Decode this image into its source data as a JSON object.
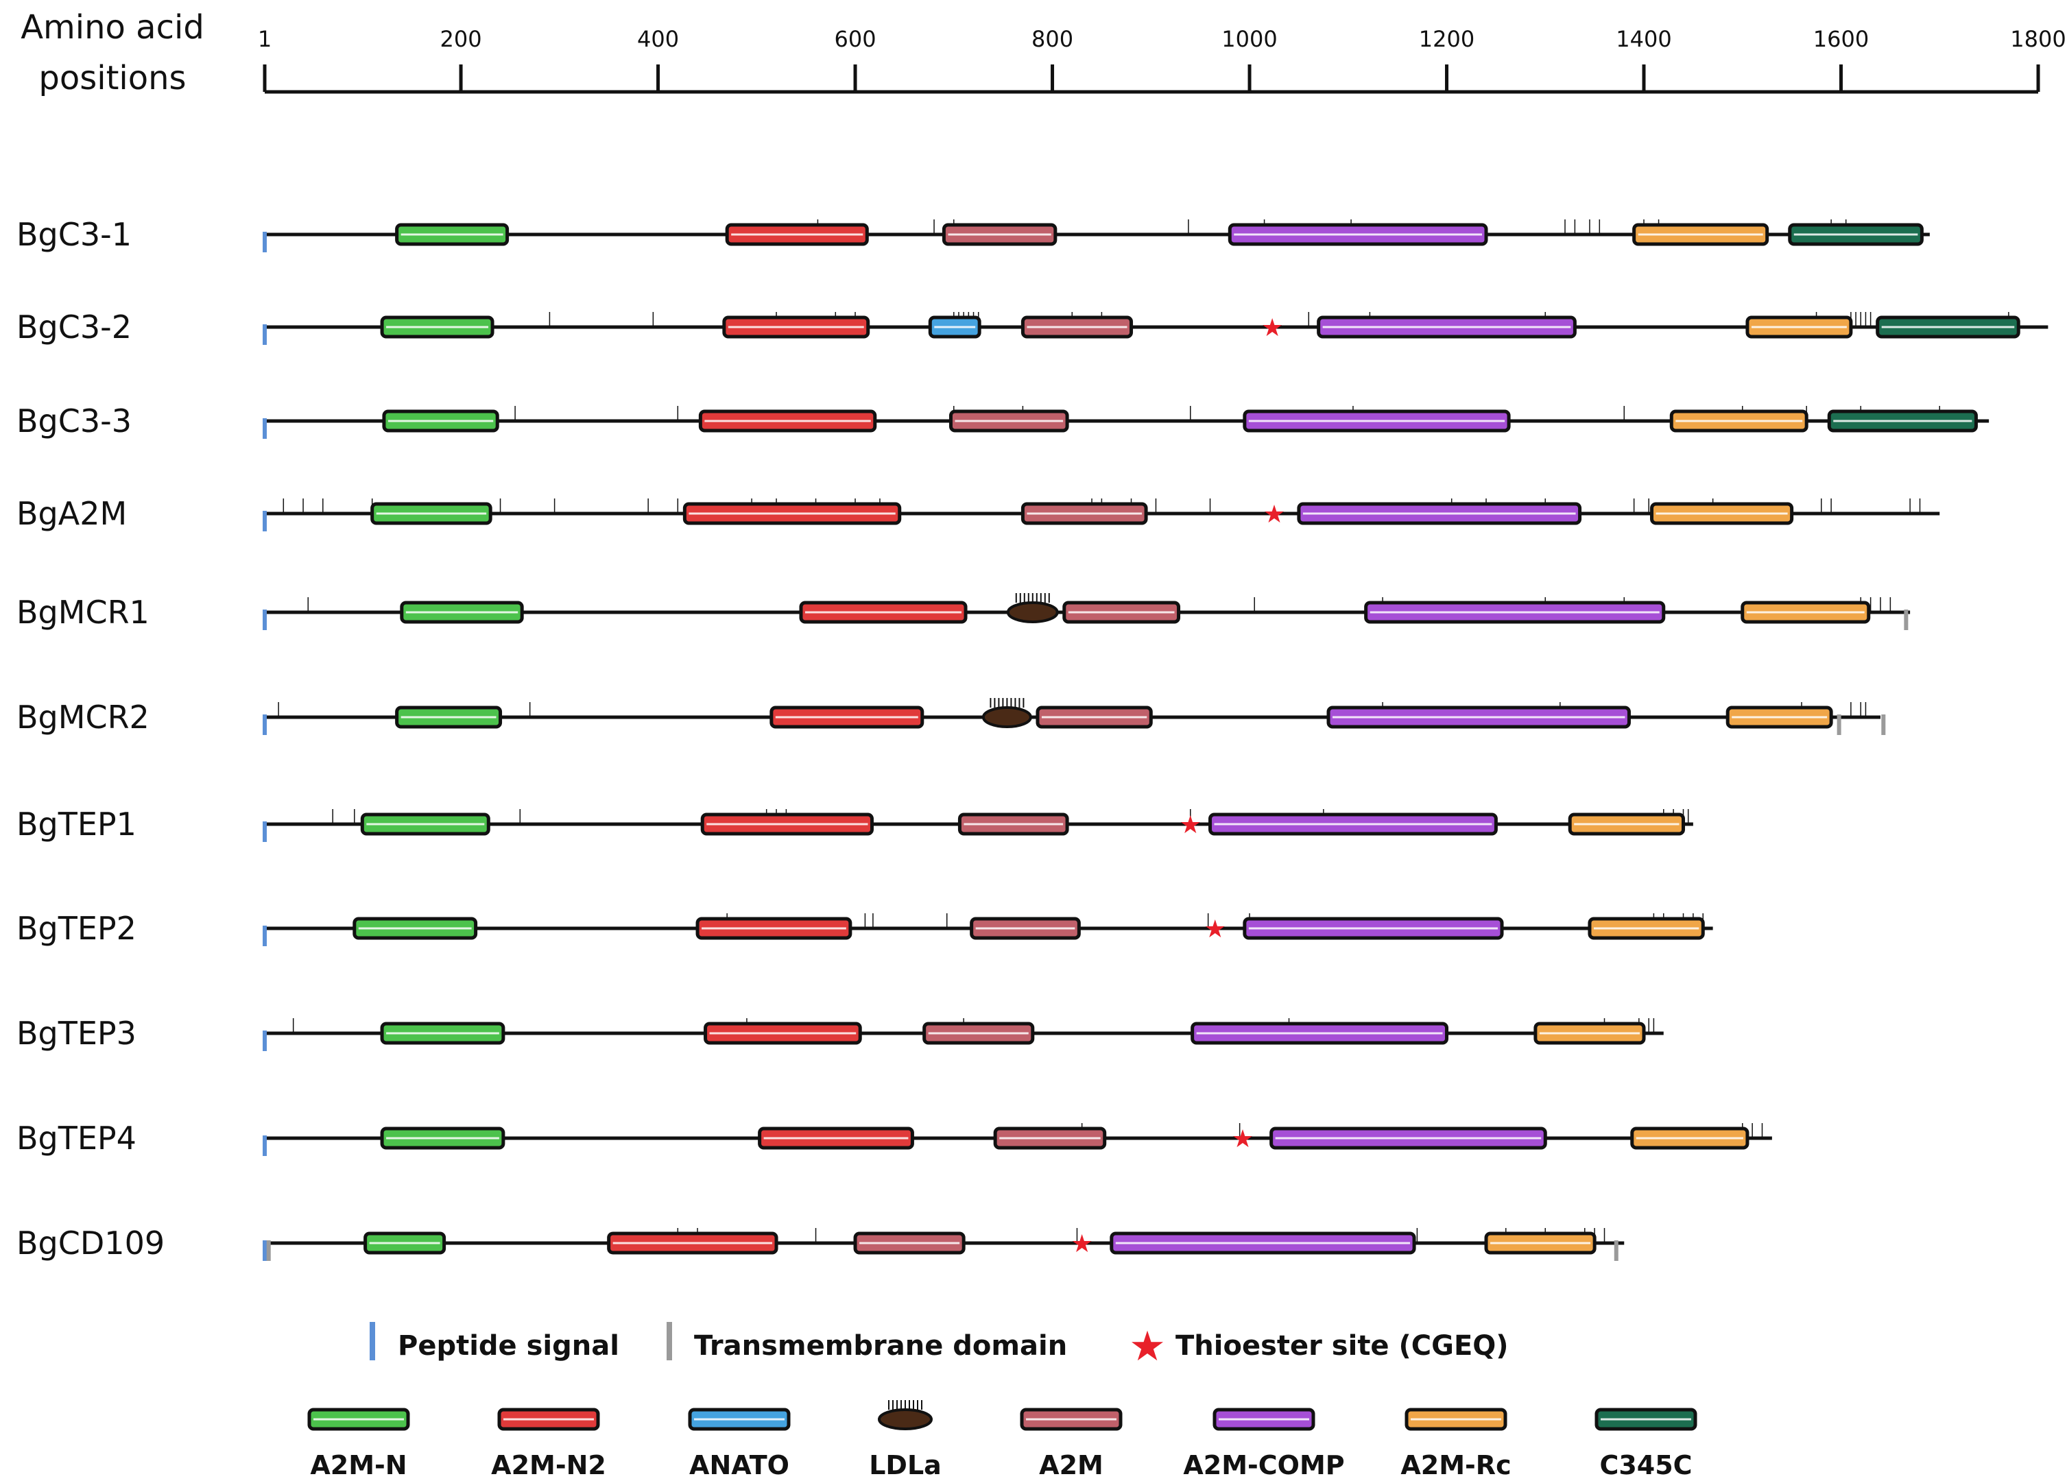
{
  "axis": {
    "title_line1": "Amino acid",
    "title_line2": "positions",
    "ticks": [
      {
        "value": 1,
        "label": "1"
      },
      {
        "value": 200,
        "label": "200"
      },
      {
        "value": 400,
        "label": "400"
      },
      {
        "value": 600,
        "label": "600"
      },
      {
        "value": 800,
        "label": "800"
      },
      {
        "value": 1000,
        "label": "1000"
      },
      {
        "value": 1200,
        "label": "1200"
      },
      {
        "value": 1400,
        "label": "1400"
      },
      {
        "value": 1600,
        "label": "1600"
      },
      {
        "value": 1800,
        "label": "1800"
      }
    ]
  },
  "domain_types": {
    "A2M-N": {
      "label": "A2M-N",
      "color": "#4cc24c",
      "shape": "bar"
    },
    "A2M-N2": {
      "label": "A2M-N2",
      "color": "#e03a3a",
      "shape": "bar"
    },
    "ANATO": {
      "label": "ANATO",
      "color": "#45a3e0",
      "shape": "bar"
    },
    "LDLa": {
      "label": "LDLa",
      "color": "#4a2a16",
      "shape": "ellipse"
    },
    "A2M": {
      "label": "A2M",
      "color": "#c0606a",
      "shape": "bar"
    },
    "A2M-COMP": {
      "label": "A2M-COMP",
      "color": "#a64fd6",
      "shape": "bar"
    },
    "A2M-Rc": {
      "label": "A2M-Rc",
      "color": "#f0a648",
      "shape": "bar"
    },
    "C345C": {
      "label": "C345C",
      "color": "#1c6e50",
      "shape": "bar"
    }
  },
  "colors": {
    "peptide_signal": "#5b8fd6",
    "transmembrane": "#9a9a9a",
    "thioester": "#e8202a",
    "backbone": "#111111"
  },
  "proteins": [
    {
      "name": "BgC3-1",
      "length": 1690,
      "signal": true,
      "tm": [],
      "thioester": null,
      "domains": [
        [
          "A2M-N",
          135,
          247
        ],
        [
          "A2M-N2",
          470,
          612
        ],
        [
          "A2M",
          690,
          803
        ],
        [
          "A2M-COMP",
          980,
          1240
        ],
        [
          "A2M-Rc",
          1390,
          1525
        ],
        [
          "C345C",
          1548,
          1682
        ]
      ],
      "marks": [
        562,
        680,
        700,
        938,
        1015,
        1103,
        1320,
        1330,
        1345,
        1355,
        1400,
        1415,
        1590,
        1605
      ]
    },
    {
      "name": "BgC3-2",
      "length": 1810,
      "signal": true,
      "tm": [],
      "thioester": 1023,
      "domains": [
        [
          "A2M-N",
          120,
          232
        ],
        [
          "A2M-N2",
          467,
          613
        ],
        [
          "ANATO",
          676,
          726
        ],
        [
          "A2M",
          770,
          880
        ],
        [
          "A2M-COMP",
          1070,
          1330
        ],
        [
          "A2M-Rc",
          1505,
          1610
        ],
        [
          "C345C",
          1637,
          1780
        ]
      ],
      "marks": [
        290,
        395,
        520,
        580,
        600,
        700,
        705,
        710,
        715,
        720,
        725,
        820,
        850,
        1060,
        1122,
        1300,
        1575,
        1610,
        1615,
        1620,
        1625,
        1630,
        1770
      ]
    },
    {
      "name": "BgC3-3",
      "length": 1750,
      "signal": true,
      "tm": [],
      "thioester": null,
      "domains": [
        [
          "A2M-N",
          122,
          237
        ],
        [
          "A2M-N2",
          443,
          620
        ],
        [
          "A2M",
          697,
          815
        ],
        [
          "A2M-COMP",
          995,
          1263
        ],
        [
          "A2M-Rc",
          1428,
          1565
        ],
        [
          "C345C",
          1588,
          1737
        ]
      ],
      "marks": [
        255,
        420,
        700,
        770,
        940,
        1105,
        1380,
        1500,
        1565,
        1620,
        1700
      ]
    },
    {
      "name": "BgA2M",
      "length": 1700,
      "signal": true,
      "tm": [],
      "thioester": 1025,
      "domains": [
        [
          "A2M-N",
          110,
          230
        ],
        [
          "A2M-N2",
          427,
          645
        ],
        [
          "A2M",
          770,
          895
        ],
        [
          "A2M-COMP",
          1050,
          1335
        ],
        [
          "A2M-Rc",
          1408,
          1550
        ],
        [
          "",
          0,
          0
        ]
      ],
      "marks": [
        20,
        40,
        60,
        110,
        240,
        295,
        390,
        420,
        495,
        520,
        560,
        600,
        625,
        840,
        850,
        880,
        905,
        960,
        1205,
        1240,
        1300,
        1390,
        1405,
        1470,
        1580,
        1590,
        1670,
        1680
      ]
    },
    {
      "name": "BgMCR1",
      "length": 1670,
      "signal": true,
      "tm": [
        1666
      ],
      "thioester": null,
      "domains": [
        [
          "A2M-N",
          140,
          262
        ],
        [
          "A2M-N2",
          545,
          712
        ],
        [
          "LDLa",
          755,
          805
        ],
        [
          "A2M",
          812,
          928
        ],
        [
          "A2M-COMP",
          1118,
          1420
        ],
        [
          "A2M-Rc",
          1500,
          1628
        ],
        [
          "",
          0,
          0
        ]
      ],
      "marks": [
        45,
        1005,
        1135,
        1300,
        1380,
        1620,
        1630,
        1640,
        1650
      ]
    },
    {
      "name": "BgMCR2",
      "length": 1640,
      "signal": true,
      "tm": [
        1598,
        1643
      ],
      "thioester": null,
      "domains": [
        [
          "A2M-N",
          135,
          240
        ],
        [
          "A2M-N2",
          515,
          668
        ],
        [
          "LDLa",
          730,
          778
        ],
        [
          "A2M",
          785,
          900
        ],
        [
          "A2M-COMP",
          1080,
          1385
        ],
        [
          "A2M-Rc",
          1485,
          1590
        ],
        [
          "",
          0,
          0
        ]
      ],
      "marks": [
        15,
        270,
        1135,
        1315,
        1560,
        1610,
        1620,
        1625
      ]
    },
    {
      "name": "BgTEP1",
      "length": 1450,
      "signal": true,
      "tm": [],
      "thioester": 940,
      "domains": [
        [
          "A2M-N",
          100,
          228
        ],
        [
          "A2M-N2",
          445,
          617
        ],
        [
          "A2M",
          706,
          815
        ],
        [
          "A2M-COMP",
          960,
          1250
        ],
        [
          "A2M-Rc",
          1325,
          1440
        ],
        [
          "",
          0,
          0
        ]
      ],
      "marks": [
        70,
        92,
        260,
        510,
        520,
        530,
        940,
        1075,
        1420,
        1430,
        1440,
        1445
      ]
    },
    {
      "name": "BgTEP2",
      "length": 1470,
      "signal": true,
      "tm": [],
      "thioester": 965,
      "domains": [
        [
          "A2M-N",
          92,
          215
        ],
        [
          "A2M-N2",
          440,
          595
        ],
        [
          "A2M",
          718,
          827
        ],
        [
          "A2M-COMP",
          995,
          1256
        ],
        [
          "A2M-Rc",
          1345,
          1460
        ],
        [
          "",
          0,
          0
        ]
      ],
      "marks": [
        470,
        610,
        618,
        693,
        958,
        1000,
        1410,
        1420,
        1440,
        1450,
        1460
      ]
    },
    {
      "name": "BgTEP3",
      "length": 1420,
      "signal": true,
      "tm": [],
      "thioester": null,
      "domains": [
        [
          "A2M-N",
          120,
          243
        ],
        [
          "A2M-N2",
          448,
          605
        ],
        [
          "A2M",
          670,
          780
        ],
        [
          "A2M-COMP",
          942,
          1200
        ],
        [
          "A2M-Rc",
          1290,
          1400
        ],
        [
          "",
          0,
          0
        ]
      ],
      "marks": [
        30,
        490,
        710,
        1040,
        1360,
        1395,
        1405,
        1410
      ]
    },
    {
      "name": "BgTEP4",
      "length": 1530,
      "signal": true,
      "tm": [],
      "thioester": 993,
      "domains": [
        [
          "A2M-N",
          120,
          243
        ],
        [
          "A2M-N2",
          503,
          658
        ],
        [
          "A2M",
          742,
          853
        ],
        [
          "A2M-COMP",
          1022,
          1300
        ],
        [
          "A2M-Rc",
          1388,
          1505
        ],
        [
          "",
          0,
          0
        ]
      ],
      "marks": [
        830,
        990,
        1500,
        1510,
        1520
      ]
    },
    {
      "name": "BgCD109",
      "length": 1380,
      "signal": true,
      "tm": [
        5,
        1372
      ],
      "thioester": 830,
      "domains": [
        [
          "A2M-N",
          103,
          183
        ],
        [
          "A2M-N2",
          350,
          520
        ],
        [
          "A2M",
          600,
          710
        ],
        [
          "A2M-COMP",
          860,
          1167
        ],
        [
          "A2M-Rc",
          1240,
          1350
        ],
        [
          "",
          0,
          0
        ]
      ],
      "marks": [
        420,
        440,
        560,
        825,
        1170,
        1260,
        1300,
        1340,
        1350,
        1360
      ]
    }
  ],
  "legend": {
    "peptide_signal": "Peptide signal",
    "transmembrane": "Transmembrane domain",
    "thioester": "Thioester site (CGEQ)",
    "domains": [
      "A2M-N",
      "A2M-N2",
      "ANATO",
      "LDLa",
      "A2M",
      "A2M-COMP",
      "A2M-Rc",
      "C345C"
    ]
  }
}
